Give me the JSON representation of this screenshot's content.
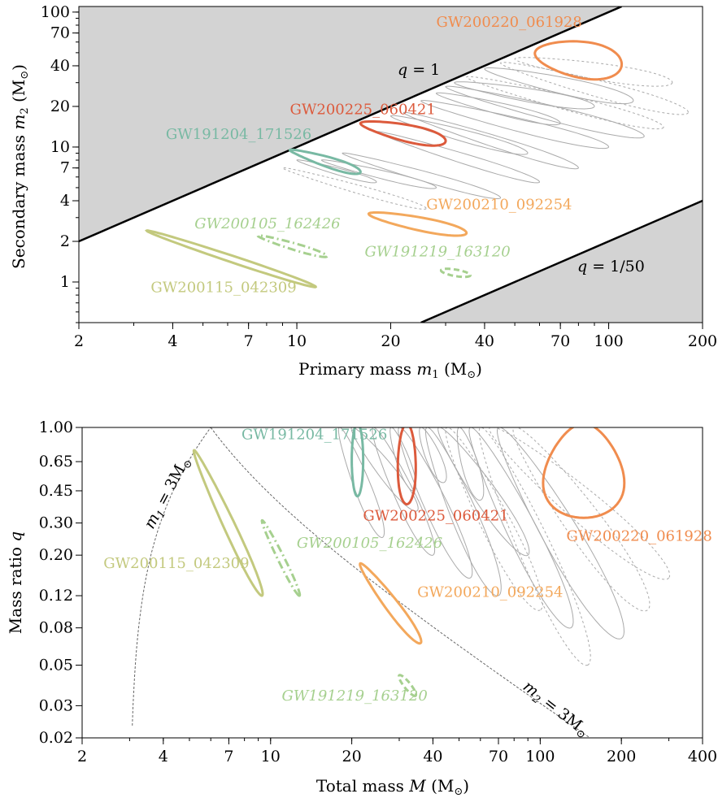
{
  "chart_data": [
    {
      "type": "contour",
      "panel": "top",
      "xlabel": "Primary mass m_1 (M_⊙)",
      "xlabel_main": "Primary mass ",
      "xlabel_math": "m",
      "xlabel_sub": "1",
      "xlabel_unit": " (M",
      "xlabel_sun": "⊙",
      "xlabel_close": ")",
      "ylabel": "Secondary mass m_2 (M_⊙)",
      "ylabel_main": "Secondary mass ",
      "ylabel_math": "m",
      "ylabel_sub": "2",
      "ylabel_unit": " (M",
      "ylabel_sun": "⊙",
      "ylabel_close": ")",
      "xscale": "log",
      "yscale": "log",
      "xlim": [
        2,
        200
      ],
      "ylim": [
        0.5,
        110
      ],
      "xticks": [
        2,
        4,
        7,
        10,
        20,
        40,
        70,
        100,
        200
      ],
      "xtick_labels": [
        "2",
        "4",
        "7",
        "10",
        "20",
        "40",
        "70",
        "100",
        "200"
      ],
      "yticks": [
        1,
        2,
        4,
        7,
        10,
        20,
        40,
        70,
        100
      ],
      "ytick_labels": [
        "1",
        "2",
        "4",
        "7",
        "10",
        "20",
        "40",
        "70",
        "100"
      ],
      "regions": [
        "m2 > m1 (shaded)",
        "q < 1/50 (shaded)"
      ],
      "line_labels": [
        "q = 1",
        "q = 1/50"
      ],
      "events": [
        {
          "name": "GW200220_061928",
          "color": "#f08c4e",
          "style": "solid",
          "italic": false,
          "m1_range": [
            50,
            120
          ],
          "m2_range": [
            30,
            100
          ],
          "label_pos": [
            28,
            78
          ]
        },
        {
          "name": "GW200225_060421",
          "color": "#dc5a3c",
          "style": "solid",
          "italic": false,
          "m1_range": [
            15,
            32
          ],
          "m2_range": [
            10,
            20
          ],
          "label_pos": [
            9.5,
            17.5
          ]
        },
        {
          "name": "GW191204_171526",
          "color": "#78b9a3",
          "style": "solid",
          "italic": false,
          "m1_range": [
            9,
            17
          ],
          "m2_range": [
            6,
            10
          ],
          "label_pos": [
            3.8,
            11.5
          ]
        },
        {
          "name": "GW200210_092254",
          "color": "#f3a85c",
          "style": "solid",
          "italic": false,
          "m1_range": [
            17,
            35
          ],
          "m2_range": [
            2.2,
            3.4
          ],
          "label_pos": [
            26,
            3.45
          ]
        },
        {
          "name": "GW200105_162426",
          "color": "#a6d08f",
          "style": "dashdot",
          "italic": true,
          "m1_range": [
            7,
            13
          ],
          "m2_range": [
            1.5,
            2.3
          ],
          "label_pos": [
            4.7,
            2.5
          ]
        },
        {
          "name": "GW191219_163120",
          "color": "#a6d08f",
          "style": "dashed",
          "italic": true,
          "m1_range": [
            28,
            37
          ],
          "m2_range": [
            1.1,
            1.3
          ],
          "label_pos": [
            16.5,
            1.55
          ]
        },
        {
          "name": "GW200115_042309",
          "color": "#c3c97e",
          "style": "solid",
          "italic": false,
          "m1_range": [
            3.2,
            12
          ],
          "m2_range": [
            0.9,
            2.4
          ],
          "label_pos": [
            3.4,
            0.84
          ]
        }
      ]
    },
    {
      "type": "contour",
      "panel": "bottom",
      "xlabel": "Total mass M (M_⊙)",
      "xlabel_main": "Total mass ",
      "xlabel_math": "M",
      "xlabel_unit": " (M",
      "xlabel_sun": "⊙",
      "xlabel_close": ")",
      "ylabel": "Mass ratio q",
      "ylabel_main": "Mass ratio ",
      "ylabel_math": "q",
      "xscale": "log",
      "yscale": "log",
      "xlim": [
        2,
        400
      ],
      "ylim": [
        0.02,
        1.0
      ],
      "xticks": [
        2,
        4,
        7,
        10,
        20,
        40,
        70,
        100,
        200,
        400
      ],
      "xtick_labels": [
        "2",
        "4",
        "7",
        "10",
        "20",
        "40",
        "70",
        "100",
        "200",
        "400"
      ],
      "yticks": [
        0.02,
        0.03,
        0.05,
        0.08,
        0.12,
        0.2,
        0.3,
        0.45,
        0.65,
        1.0
      ],
      "ytick_labels": [
        "0.02",
        "0.03",
        "0.05",
        "0.08",
        "0.12",
        "0.20",
        "0.30",
        "0.45",
        "0.65",
        "1.00"
      ],
      "line_labels": [
        "m_1 = 3M_⊙",
        "m_2 = 3M_⊙"
      ],
      "events": [
        {
          "name": "GW200220_061928",
          "color": "#f08c4e",
          "style": "solid",
          "italic": false,
          "M_range": [
            100,
            200
          ],
          "q_range": [
            0.32,
            1.0
          ],
          "label_pos": [
            125,
            0.24
          ]
        },
        {
          "name": "GW200225_060421",
          "color": "#dc5a3c",
          "style": "solid",
          "italic": false,
          "M_range": [
            28,
            36
          ],
          "q_range": [
            0.38,
            1.0
          ],
          "label_pos": [
            22,
            0.31
          ]
        },
        {
          "name": "GW191204_171526",
          "color": "#78b9a3",
          "style": "solid",
          "italic": false,
          "M_range": [
            19,
            23
          ],
          "q_range": [
            0.42,
            1.0
          ],
          "label_pos": [
            7.8,
            0.86
          ]
        },
        {
          "name": "GW200210_092254",
          "color": "#f3a85c",
          "style": "solid",
          "italic": false,
          "M_range": [
            21,
            36
          ],
          "q_range": [
            0.065,
            0.18
          ],
          "label_pos": [
            35,
            0.118
          ]
        },
        {
          "name": "GW200105_162426",
          "color": "#a6d08f",
          "style": "dashdot",
          "italic": true,
          "M_range": [
            9,
            13
          ],
          "q_range": [
            0.12,
            0.32
          ],
          "label_pos": [
            12.5,
            0.22
          ]
        },
        {
          "name": "GW191219_163120",
          "color": "#a6d08f",
          "style": "dashed",
          "italic": true,
          "M_range": [
            30,
            35
          ],
          "q_range": [
            0.033,
            0.044
          ],
          "label_pos": [
            11,
            0.032
          ]
        },
        {
          "name": "GW200115_042309",
          "color": "#c3c97e",
          "style": "solid",
          "italic": false,
          "M_range": [
            5,
            9.5
          ],
          "q_range": [
            0.12,
            0.8
          ],
          "label_pos": [
            2.4,
            0.17
          ]
        }
      ]
    }
  ],
  "annotations": {
    "top_q1_label": {
      "q": "q",
      "eq": " = 1"
    },
    "top_q50_label": {
      "q": "q",
      "eq": " = 1/50"
    },
    "bottom_m1_label": {
      "m": "m",
      "sub": "1",
      "eq": " = 3M",
      "sun": "⊙"
    },
    "bottom_m2_label": {
      "m": "m",
      "sub": "2",
      "eq": " = 3M",
      "sun": "⊙"
    }
  },
  "colors": {
    "shade": "#d3d3d3",
    "grey_contour": "#aaaaaa",
    "axis": "#000000"
  }
}
